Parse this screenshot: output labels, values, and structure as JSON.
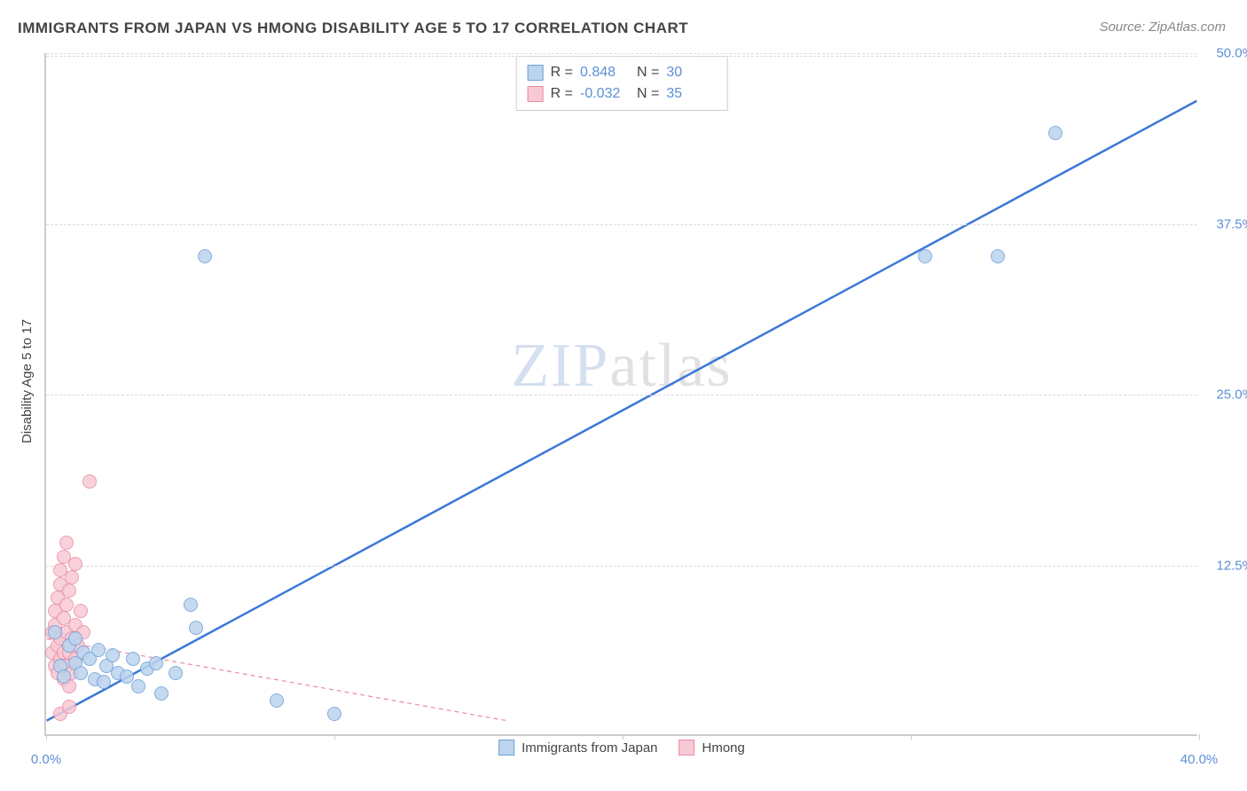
{
  "title": "IMMIGRANTS FROM JAPAN VS HMONG DISABILITY AGE 5 TO 17 CORRELATION CHART",
  "source": "Source: ZipAtlas.com",
  "watermark": {
    "prefix": "ZIP",
    "suffix": "atlas"
  },
  "chart": {
    "type": "scatter",
    "background_color": "#ffffff",
    "grid_color": "#dddddd",
    "axis_color": "#cccccc",
    "tick_label_color": "#5b8fd6",
    "label_fontsize": 15,
    "title_fontsize": 17,
    "ylabel": "Disability Age 5 to 17",
    "xlim": [
      0,
      40
    ],
    "ylim": [
      0,
      50
    ],
    "xtick_step": 10,
    "ytick_step": 12.5,
    "xtick_labels": [
      "0.0%",
      "",
      "",
      "",
      "40.0%"
    ],
    "ytick_values": [
      12.5,
      25.0,
      37.5,
      50.0
    ],
    "ytick_labels": [
      "12.5%",
      "25.0%",
      "37.5%",
      "50.0%"
    ],
    "marker_radius": 8,
    "marker_border_width": 1.5,
    "series": [
      {
        "name": "Immigrants from Japan",
        "fill": "#bcd4ee",
        "stroke": "#6f9fd8",
        "R": "0.848",
        "N": "30",
        "trend": {
          "x1": 0,
          "y1": 1.0,
          "x2": 40,
          "y2": 46.5,
          "color": "#3b78d8",
          "width": 2.5,
          "dash": "none"
        },
        "points": [
          [
            0.3,
            7.5
          ],
          [
            0.5,
            5.0
          ],
          [
            0.6,
            4.2
          ],
          [
            0.8,
            6.5
          ],
          [
            1.0,
            5.2
          ],
          [
            1.0,
            7.0
          ],
          [
            1.2,
            4.5
          ],
          [
            1.3,
            6.0
          ],
          [
            1.5,
            5.5
          ],
          [
            1.7,
            4.0
          ],
          [
            1.8,
            6.2
          ],
          [
            2.0,
            3.8
          ],
          [
            2.1,
            5.0
          ],
          [
            2.3,
            5.8
          ],
          [
            2.5,
            4.5
          ],
          [
            2.8,
            4.2
          ],
          [
            3.0,
            5.5
          ],
          [
            3.2,
            3.5
          ],
          [
            3.5,
            4.8
          ],
          [
            3.8,
            5.2
          ],
          [
            4.0,
            3.0
          ],
          [
            4.5,
            4.5
          ],
          [
            5.0,
            9.5
          ],
          [
            5.2,
            7.8
          ],
          [
            5.5,
            35.0
          ],
          [
            8.0,
            2.5
          ],
          [
            10.0,
            1.5
          ],
          [
            30.5,
            35.0
          ],
          [
            33.0,
            35.0
          ],
          [
            35.0,
            44.0
          ]
        ]
      },
      {
        "name": "Hmong",
        "fill": "#f7c9d4",
        "stroke": "#e88ca3",
        "R": "-0.032",
        "N": "35",
        "trend": {
          "x1": 0,
          "y1": 7.0,
          "x2": 16,
          "y2": 1.0,
          "color": "#e88ca3",
          "width": 1.2,
          "dash": "5,4"
        },
        "points": [
          [
            0.2,
            6.0
          ],
          [
            0.2,
            7.5
          ],
          [
            0.3,
            5.0
          ],
          [
            0.3,
            8.0
          ],
          [
            0.3,
            9.0
          ],
          [
            0.4,
            4.5
          ],
          [
            0.4,
            6.5
          ],
          [
            0.4,
            10.0
          ],
          [
            0.5,
            5.5
          ],
          [
            0.5,
            7.0
          ],
          [
            0.5,
            11.0
          ],
          [
            0.5,
            12.0
          ],
          [
            0.6,
            4.0
          ],
          [
            0.6,
            6.0
          ],
          [
            0.6,
            8.5
          ],
          [
            0.6,
            13.0
          ],
          [
            0.7,
            5.0
          ],
          [
            0.7,
            7.5
          ],
          [
            0.7,
            9.5
          ],
          [
            0.7,
            14.0
          ],
          [
            0.8,
            3.5
          ],
          [
            0.8,
            6.0
          ],
          [
            0.8,
            10.5
          ],
          [
            0.9,
            4.5
          ],
          [
            0.9,
            7.0
          ],
          [
            0.9,
            11.5
          ],
          [
            1.0,
            5.5
          ],
          [
            1.0,
            8.0
          ],
          [
            1.0,
            12.5
          ],
          [
            1.1,
            6.5
          ],
          [
            1.2,
            9.0
          ],
          [
            1.3,
            7.5
          ],
          [
            1.5,
            18.5
          ],
          [
            0.5,
            1.5
          ],
          [
            0.8,
            2.0
          ]
        ]
      }
    ],
    "bottom_legend": [
      {
        "label": "Immigrants from Japan",
        "fill": "#bcd4ee",
        "stroke": "#6f9fd8"
      },
      {
        "label": "Hmong",
        "fill": "#f7c9d4",
        "stroke": "#e88ca3"
      }
    ]
  }
}
